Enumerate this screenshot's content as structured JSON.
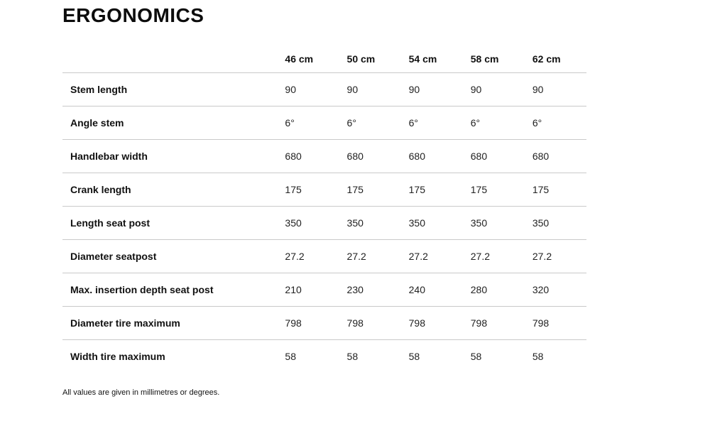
{
  "page": {
    "title": "ERGONOMICS",
    "footnote": "All values are given in millimetres or degrees."
  },
  "table": {
    "columns": [
      "46 cm",
      "50 cm",
      "54 cm",
      "58 cm",
      "62 cm"
    ],
    "rows": [
      {
        "label": "Stem length",
        "values": [
          "90",
          "90",
          "90",
          "90",
          "90"
        ]
      },
      {
        "label": "Angle stem",
        "values": [
          "6°",
          "6°",
          "6°",
          "6°",
          "6°"
        ]
      },
      {
        "label": "Handlebar width",
        "values": [
          "680",
          "680",
          "680",
          "680",
          "680"
        ]
      },
      {
        "label": "Crank length",
        "values": [
          "175",
          "175",
          "175",
          "175",
          "175"
        ]
      },
      {
        "label": "Length seat post",
        "values": [
          "350",
          "350",
          "350",
          "350",
          "350"
        ]
      },
      {
        "label": "Diameter seatpost",
        "values": [
          "27.2",
          "27.2",
          "27.2",
          "27.2",
          "27.2"
        ]
      },
      {
        "label": "Max. insertion depth seat post",
        "values": [
          "210",
          "230",
          "240",
          "280",
          "320"
        ]
      },
      {
        "label": "Diameter tire maximum",
        "values": [
          "798",
          "798",
          "798",
          "798",
          "798"
        ]
      },
      {
        "label": "Width tire maximum",
        "values": [
          "58",
          "58",
          "58",
          "58",
          "58"
        ]
      }
    ]
  }
}
